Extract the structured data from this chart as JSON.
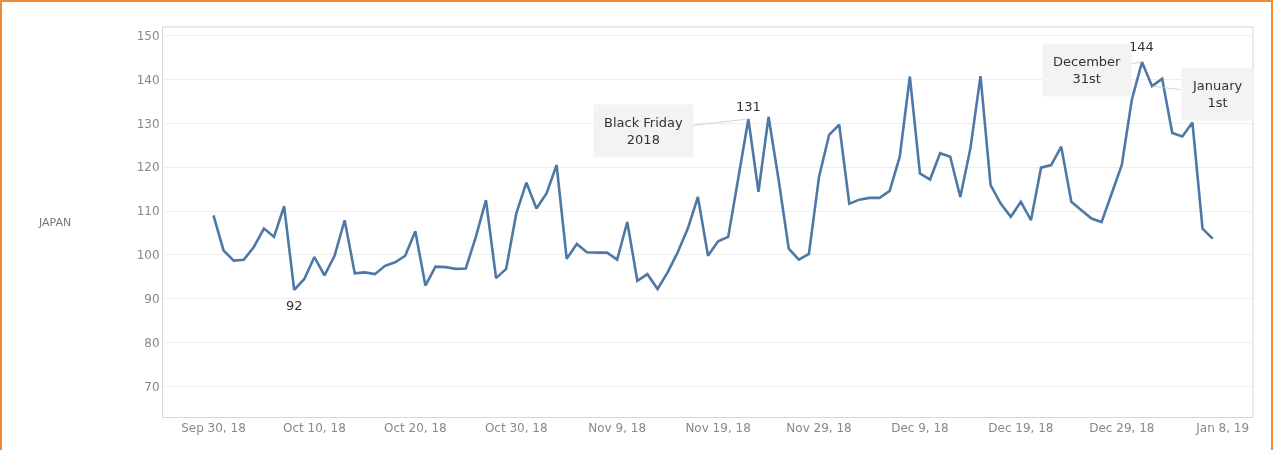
{
  "chart_data": {
    "type": "line",
    "x": [
      "2018-09-30",
      "2018-10-01",
      "2018-10-02",
      "2018-10-03",
      "2018-10-04",
      "2018-10-05",
      "2018-10-06",
      "2018-10-07",
      "2018-10-08",
      "2018-10-09",
      "2018-10-10",
      "2018-10-11",
      "2018-10-12",
      "2018-10-13",
      "2018-10-14",
      "2018-10-15",
      "2018-10-16",
      "2018-10-17",
      "2018-10-18",
      "2018-10-19",
      "2018-10-20",
      "2018-10-21",
      "2018-10-22",
      "2018-10-23",
      "2018-10-24",
      "2018-10-25",
      "2018-10-26",
      "2018-10-27",
      "2018-10-28",
      "2018-10-29",
      "2018-10-30",
      "2018-10-31",
      "2018-11-01",
      "2018-11-02",
      "2018-11-03",
      "2018-11-04",
      "2018-11-05",
      "2018-11-06",
      "2018-11-07",
      "2018-11-08",
      "2018-11-09",
      "2018-11-10",
      "2018-11-11",
      "2018-11-12",
      "2018-11-13",
      "2018-11-14",
      "2018-11-15",
      "2018-11-16",
      "2018-11-17",
      "2018-11-18",
      "2018-11-19",
      "2018-11-20",
      "2018-11-21",
      "2018-11-22",
      "2018-11-23",
      "2018-11-24",
      "2018-11-25",
      "2018-11-26",
      "2018-11-27",
      "2018-11-28",
      "2018-11-29",
      "2018-11-30",
      "2018-12-01",
      "2018-12-02",
      "2018-12-03",
      "2018-12-04",
      "2018-12-05",
      "2018-12-06",
      "2018-12-07",
      "2018-12-08",
      "2018-12-09",
      "2018-12-10",
      "2018-12-11",
      "2018-12-12",
      "2018-12-13",
      "2018-12-14",
      "2018-12-15",
      "2018-12-16",
      "2018-12-17",
      "2018-12-18",
      "2018-12-19",
      "2018-12-20",
      "2018-12-21",
      "2018-12-22",
      "2018-12-23",
      "2018-12-24",
      "2018-12-25",
      "2018-12-26",
      "2018-12-27",
      "2018-12-28",
      "2018-12-29",
      "2018-12-30",
      "2018-12-31",
      "2019-01-01",
      "2019-01-02",
      "2019-01-03",
      "2019-01-04",
      "2019-01-05",
      "2019-01-06",
      "2019-01-07"
    ],
    "series": [
      {
        "color": "#4e79a7",
        "values": [
          109.0,
          101.0,
          98.7,
          98.9,
          101.8,
          106.0,
          104.1,
          111.1,
          92,
          94.5,
          99.5,
          95.3,
          99.8,
          107.9,
          95.8,
          96.0,
          95.6,
          97.5,
          98.3,
          99.8,
          105.4,
          93.0,
          97.3,
          97.2,
          96.8,
          96.9,
          104.1,
          112.5,
          94.7,
          96.8,
          109.4,
          116.5,
          110.6,
          114.0,
          120.5,
          99.1,
          102.5,
          100.6,
          100.5,
          100.5,
          98.9,
          107.5,
          94.1,
          95.6,
          92.2,
          96.0,
          100.6,
          106.0,
          113.2,
          99.8,
          103.1,
          104.1,
          117.5,
          131,
          114.4,
          131.5,
          117.1,
          101.4,
          98.9,
          100.2,
          117.8,
          127.4,
          129.7,
          111.7,
          112.6,
          113.0,
          113.0,
          114.6,
          122.4,
          140.7,
          118.6,
          117.2,
          123.2,
          122.4,
          113.2,
          124.3,
          140.8,
          115.9,
          111.7,
          108.7,
          112.1,
          107.9,
          119.9,
          120.5,
          124.7,
          112.1,
          110.2,
          108.3,
          107.5,
          114.0,
          120.5,
          135.5,
          144,
          138.5,
          140.2,
          127.8,
          127.0,
          130.2,
          106.0,
          103.7
        ]
      }
    ],
    "xlim": [
      "2018-09-25",
      "2019-01-11"
    ],
    "xticks": [
      {
        "value": "2018-09-30",
        "label": "Sep 30, 18"
      },
      {
        "value": "2018-10-10",
        "label": "Oct 10, 18"
      },
      {
        "value": "2018-10-20",
        "label": "Oct 20, 18"
      },
      {
        "value": "2018-10-30",
        "label": "Oct 30, 18"
      },
      {
        "value": "2018-11-09",
        "label": "Nov 9, 18"
      },
      {
        "value": "2018-11-19",
        "label": "Nov 19, 18"
      },
      {
        "value": "2018-11-29",
        "label": "Nov 29, 18"
      },
      {
        "value": "2018-12-09",
        "label": "Dec 9, 18"
      },
      {
        "value": "2018-12-19",
        "label": "Dec 19, 18"
      },
      {
        "value": "2018-12-29",
        "label": "Dec 29, 18"
      },
      {
        "value": "2019-01-08",
        "label": "Jan 8, 19"
      }
    ],
    "ylim": [
      63,
      152
    ],
    "yticks": [
      70,
      80,
      90,
      100,
      110,
      120,
      130,
      140,
      150
    ],
    "grid": "y",
    "marker": "none",
    "line_style": "solid",
    "annotations": [
      {
        "text": "92",
        "x": "2018-10-08",
        "y": 92
      },
      {
        "text": "131",
        "x": "2018-11-22",
        "y": 131
      },
      {
        "text": "Black Friday 2018",
        "x": "2018-11-22",
        "y": 131
      },
      {
        "text": "144",
        "x": "2018-12-31",
        "y": 144
      },
      {
        "text": "December 31st",
        "x": "2018-12-31",
        "y": 144
      },
      {
        "text": "January 1st",
        "x": "2019-01-01",
        "y": 138.5
      },
      "JAPAN"
    ]
  }
}
